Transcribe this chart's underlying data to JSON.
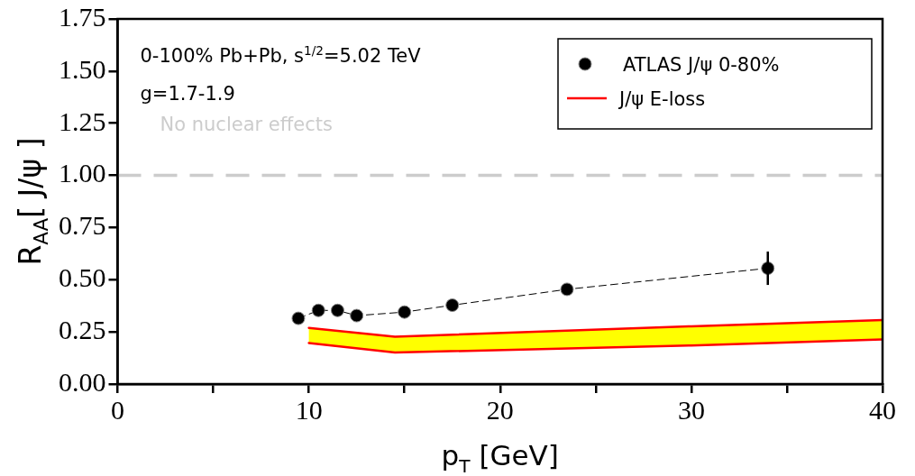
{
  "chart_data": {
    "type": "line",
    "xlabel": "p$_{T}$ [GeV]",
    "ylabel": "R$_{AA}$[ J/ψ ]",
    "annotations": [
      "0-100% Pb+Pb, s$^{1/2}$=5.02 TeV",
      "g=1.7-1.9"
    ],
    "xlim": [
      0,
      40
    ],
    "xticks": [
      0,
      {
        "value": 5,
        "label": null
      },
      10,
      {
        "value": 15,
        "label": null
      },
      20,
      {
        "value": 25,
        "label": null
      },
      30,
      {
        "value": 35,
        "label": null
      },
      40
    ],
    "ylim": [
      0,
      1.75
    ],
    "yticks": [
      {
        "value": 0,
        "label": "0.00"
      },
      {
        "value": 0.25,
        "label": "0.25"
      },
      {
        "value": 0.5,
        "label": "0.50"
      },
      {
        "value": 0.75,
        "label": "0.75"
      },
      {
        "value": 1,
        "label": "1.00"
      },
      {
        "value": 1.25,
        "label": "1.25"
      },
      {
        "value": 1.5,
        "label": "1.50"
      },
      {
        "value": 1.75,
        "label": "1.75"
      }
    ],
    "grid": false,
    "legend": "top right",
    "ref_lines": [
      {
        "axis": "y",
        "value": 1,
        "label": "No nuclear effects",
        "color": "#cccccc",
        "line_style": "dashed"
      }
    ],
    "series": [
      {
        "type": "area",
        "name": "J/ψ E-loss",
        "color": "#ff0000",
        "colors": [
          "#ffff00",
          "#ffff00",
          "#ffff00",
          "#ffff00"
        ],
        "marker": "none",
        "line_style": "solid",
        "x": [
          10,
          14.5,
          30,
          40
        ],
        "values": [
          0.269,
          0.227,
          0.277,
          0.307
        ]
      },
      {
        "type": "line",
        "color": "#ff0000",
        "marker": "none",
        "line_style": "solid",
        "x": [
          10,
          14.5,
          30,
          40
        ],
        "values": [
          0.197,
          0.151,
          0.185,
          0.214
        ]
      },
      {
        "type": "line",
        "name": "ATLAS J/ψ 0-80%",
        "color": "#000000",
        "marker": "circle",
        "line_style": "dashed",
        "x": [
          9.45,
          10.5,
          11.5,
          12.5,
          15,
          17.5,
          23.5,
          34
        ],
        "values": [
          0.315,
          0.353,
          0.353,
          0.328,
          0.345,
          0.378,
          0.454,
          0.555
        ],
        "errors": [
          null,
          null,
          null,
          null,
          null,
          null,
          null,
          0.08
        ]
      }
    ]
  }
}
